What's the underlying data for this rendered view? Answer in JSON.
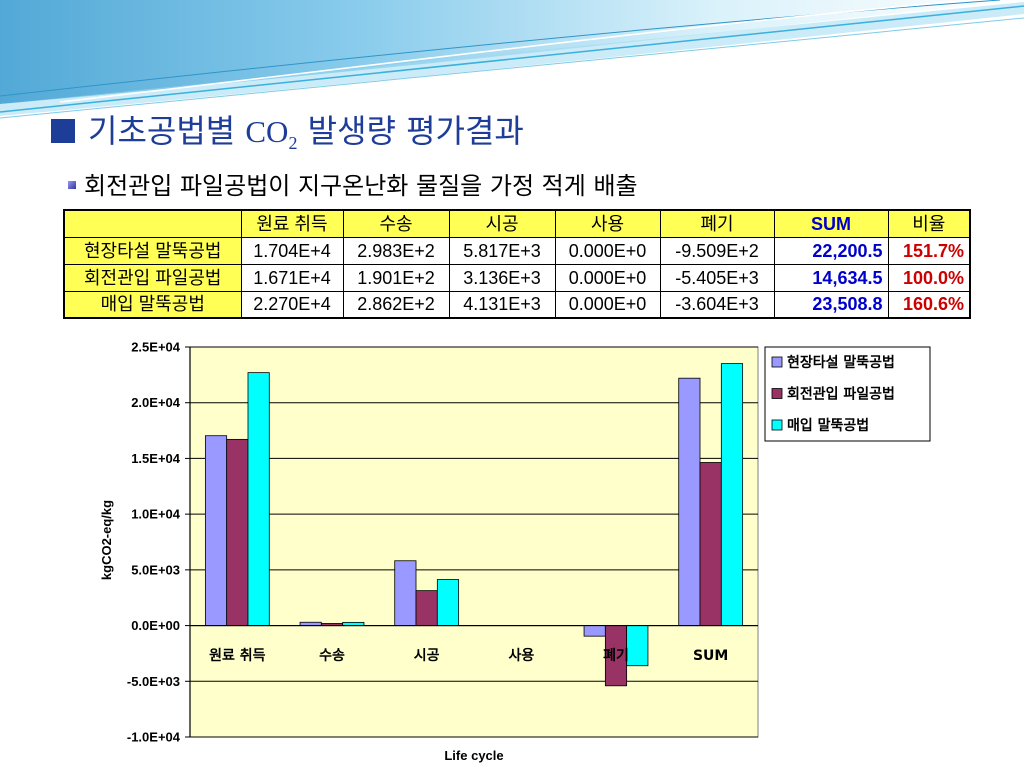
{
  "colors": {
    "title": "#1e3d99",
    "header_bg": "#ffff55",
    "sum_text": "#0000cc",
    "ratio_text": "#cc0000"
  },
  "slide": {
    "title": {
      "before": "기초공법별",
      "formula": "CO",
      "subscript": "2",
      "after": "발생량 평가결과"
    },
    "subtitle": "회전관입 파일공법이 지구온난화 물질을 가정 적게 배출"
  },
  "table": {
    "header": [
      "원료 취득",
      "수송",
      "시공",
      "사용",
      "폐기",
      "SUM",
      "비율"
    ],
    "rows": [
      {
        "label": "현장타설 말뚝공법",
        "values": [
          "1.704E+4",
          "2.983E+2",
          "5.817E+3",
          "0.000E+0",
          "-9.509E+2"
        ],
        "sum": "22,200.5",
        "ratio": "151.7%"
      },
      {
        "label": "회전관입 파일공법",
        "values": [
          "1.671E+4",
          "1.901E+2",
          "3.136E+3",
          "0.000E+0",
          "-5.405E+3"
        ],
        "sum": "14,634.5",
        "ratio": "100.0%"
      },
      {
        "label": "매입 말뚝공법",
        "values": [
          "2.270E+4",
          "2.862E+2",
          "4.131E+3",
          "0.000E+0",
          "-3.604E+3"
        ],
        "sum": "23,508.8",
        "ratio": "160.6%"
      }
    ]
  },
  "chart_data": {
    "type": "bar",
    "categories": [
      "원료 취득",
      "수송",
      "시공",
      "사용",
      "폐기",
      "SUM"
    ],
    "series": [
      {
        "name": "현장타설 말뚝공법",
        "color": "#9999ff",
        "values": [
          17040,
          298.3,
          5817,
          0,
          -950.9,
          22200.5
        ]
      },
      {
        "name": "회전관입 파일공법",
        "color": "#993366",
        "values": [
          16710,
          190.1,
          3136,
          0,
          -5405,
          14634.5
        ]
      },
      {
        "name": "매입 말뚝공법",
        "color": "#00ffff",
        "values": [
          22700,
          286.2,
          4131,
          0,
          -3604,
          23508.8
        ]
      }
    ],
    "xlabel": "Life cycle",
    "ylabel": "kgCO2-eq/kg",
    "ylim": [
      -10000,
      25000
    ],
    "yticks": [
      25000,
      20000,
      15000,
      10000,
      5000,
      0,
      -5000,
      -10000
    ],
    "ytick_labels": [
      "2.5E+04",
      "2.0E+04",
      "1.5E+04",
      "1.0E+04",
      "5.0E+03",
      "0.0E+00",
      "-5.0E+03",
      "-1.0E+04"
    ],
    "grid": true,
    "legend": "right",
    "plot_background": "#ffffcc"
  }
}
